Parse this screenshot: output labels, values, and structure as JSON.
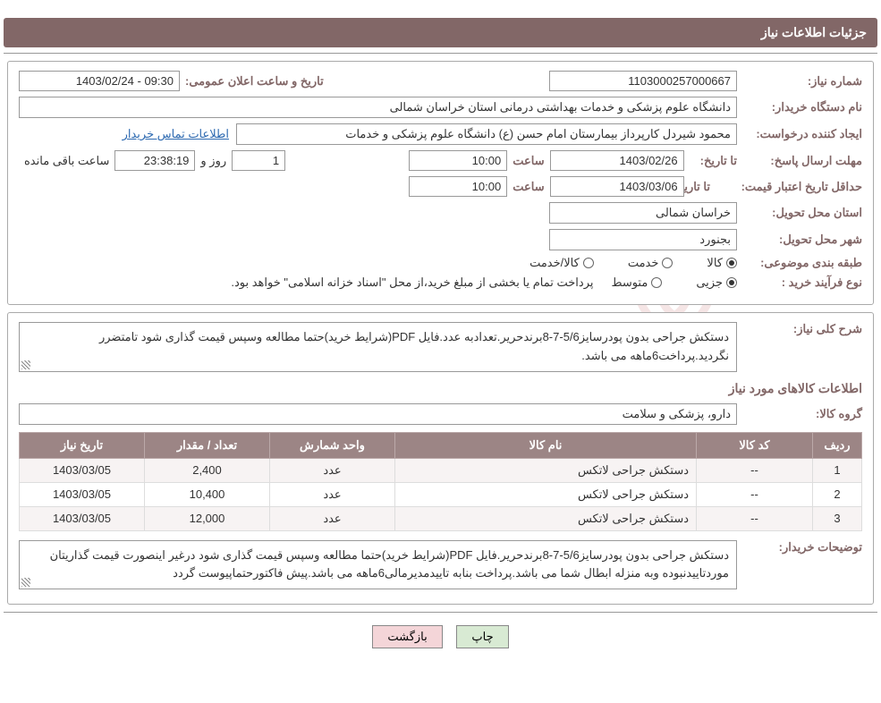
{
  "header": {
    "title": "جزئیات اطلاعات نیاز"
  },
  "need": {
    "number_label": "شماره نیاز:",
    "number": "1103000257000667",
    "announce_label": "تاریخ و ساعت اعلان عمومی:",
    "announce_value": "09:30 - 1403/02/24",
    "buyer_label": "نام دستگاه خریدار:",
    "buyer": "دانشگاه علوم پزشکی و خدمات بهداشتی درمانی استان خراسان شمالی",
    "creator_label": "ایجاد کننده درخواست:",
    "creator": "محمود شیردل کارپرداز بیمارستان امام حسن (ع) دانشگاه علوم پزشکی و خدمات",
    "contact_link": "اطلاعات تماس خریدار",
    "deadline_label": "مهلت ارسال پاسخ:",
    "until_label": "تا تاریخ:",
    "deadline_date": "1403/02/26",
    "time_label": "ساعت",
    "deadline_time": "10:00",
    "days_value": "1",
    "days_and": "روز و",
    "countdown": "23:38:19",
    "remaining": "ساعت باقی مانده",
    "price_valid_label": "حداقل تاریخ اعتبار قیمت:",
    "price_valid_date": "1403/03/06",
    "price_valid_time": "10:00",
    "province_label": "استان محل تحویل:",
    "province": "خراسان شمالی",
    "city_label": "شهر محل تحویل:",
    "city": "بجنورد",
    "category_label": "طبقه بندی موضوعی:",
    "cat_goods": "کالا",
    "cat_service": "خدمت",
    "cat_goods_service": "کالا/خدمت",
    "process_label": "نوع فرآیند خرید :",
    "process_partial": "جزیی",
    "process_medium": "متوسط",
    "process_note": "پرداخت تمام یا بخشی از مبلغ خرید،از محل \"اسناد خزانه اسلامی\" خواهد بود."
  },
  "detail": {
    "general_label": "شرح کلی نیاز:",
    "general_text": "دستکش جراحی بدون پودرسایز5/6-7-8برندحریر.تعدادبه عدد.فایل PDF(شرایط خرید)حتما مطالعه وسپس قیمت گذاری شود تامتضرر نگردید.پرداخت6ماهه می باشد.",
    "items_title": "اطلاعات کالاهای مورد نیاز",
    "group_label": "گروه کالا:",
    "group": "دارو، پزشکی و سلامت",
    "buyer_note_label": "توضیحات خریدار:",
    "buyer_note": "دستکش جراحی بدون پودرسایز5/6-7-8برندحریر.فایل PDF(شرایط خرید)حتما مطالعه وسپس قیمت گذاری شود درغیر اینصورت قیمت گذاریتان موردتاییدنبوده وبه منزله ابطال شما می باشد.پرداخت بنابه تاییدمدیرمالی6ماهه می باشد.پیش فاکتورحتماپیوست گردد"
  },
  "table": {
    "headers": {
      "row": "ردیف",
      "code": "کد کالا",
      "name": "نام کالا",
      "unit": "واحد شمارش",
      "qty": "تعداد / مقدار",
      "date": "تاریخ نیاز"
    },
    "rows": [
      {
        "row": "1",
        "code": "--",
        "name": "دستکش جراحی لاتکس",
        "unit": "عدد",
        "qty": "2,400",
        "date": "1403/03/05"
      },
      {
        "row": "2",
        "code": "--",
        "name": "دستکش جراحی لاتکس",
        "unit": "عدد",
        "qty": "10,400",
        "date": "1403/03/05"
      },
      {
        "row": "3",
        "code": "--",
        "name": "دستکش جراحی لاتکس",
        "unit": "عدد",
        "qty": "12,000",
        "date": "1403/03/05"
      }
    ]
  },
  "buttons": {
    "print": "چاپ",
    "back": "بازگشت"
  },
  "watermark": {
    "text": "AriaTender.net"
  }
}
